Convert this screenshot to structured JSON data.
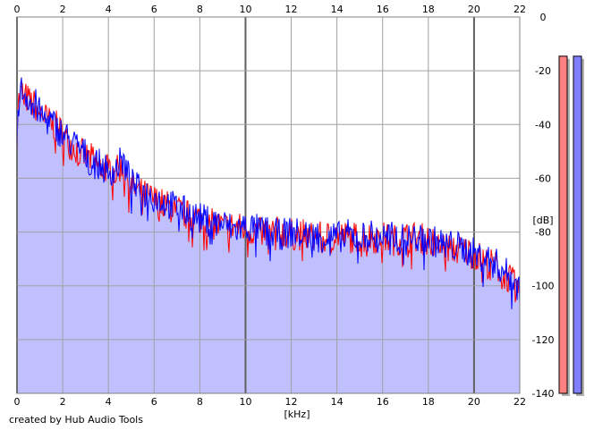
{
  "footer_text": "created by Hub Audio Tools",
  "chart_data": {
    "type": "area",
    "xlabel": "[kHz]",
    "ylabel": "[dB]",
    "xlim": [
      0,
      22
    ],
    "ylim": [
      -140,
      0
    ],
    "x_ticks": [
      "0",
      "2",
      "4",
      "6",
      "8",
      "10",
      "12",
      "14",
      "16",
      "18",
      "20",
      "22"
    ],
    "y_ticks": [
      "0",
      "-20",
      "-40",
      "-60",
      "-80",
      "-100",
      "-120",
      "-140"
    ],
    "grid": true,
    "fill_color": "#c0c0ff",
    "series": [
      {
        "color": "#ff0000",
        "x": [
          0,
          0.2,
          0.4,
          0.6,
          0.8,
          1.0,
          1.2,
          1.5,
          1.8,
          2.0,
          2.3,
          2.6,
          3.0,
          3.3,
          3.6,
          4.0,
          4.3,
          4.6,
          5.0,
          5.5,
          6.0,
          6.5,
          7.0,
          7.5,
          8.0,
          8.5,
          9.0,
          9.5,
          10.0,
          10.5,
          11.0,
          11.5,
          12.0,
          12.5,
          13.0,
          13.5,
          14.0,
          14.5,
          15.0,
          15.5,
          16.0,
          16.5,
          17.0,
          17.5,
          18.0,
          18.5,
          19.0,
          19.5,
          20.0,
          20.5,
          21.0,
          21.5,
          22.0
        ],
        "y": [
          -33,
          -28,
          -30,
          -32,
          -33,
          -35,
          -37,
          -40,
          -41,
          -44,
          -47,
          -49,
          -52,
          -53,
          -56,
          -56,
          -58,
          -55,
          -63,
          -66,
          -68,
          -70,
          -72,
          -74,
          -75,
          -77,
          -78,
          -78,
          -79,
          -80,
          -80,
          -80,
          -81,
          -81,
          -82,
          -82,
          -81,
          -82,
          -82,
          -82,
          -82,
          -83,
          -82,
          -82,
          -83,
          -85,
          -86,
          -87,
          -88,
          -91,
          -93,
          -97,
          -102
        ]
      },
      {
        "color": "#0000ff",
        "x": [
          0,
          0.2,
          0.4,
          0.6,
          0.8,
          1.0,
          1.2,
          1.5,
          1.8,
          2.0,
          2.3,
          2.6,
          3.0,
          3.3,
          3.6,
          4.0,
          4.3,
          4.6,
          5.0,
          5.5,
          6.0,
          6.5,
          7.0,
          7.5,
          8.0,
          8.5,
          9.0,
          9.5,
          10.0,
          10.5,
          11.0,
          11.5,
          12.0,
          12.5,
          13.0,
          13.5,
          14.0,
          14.5,
          15.0,
          15.5,
          16.0,
          16.5,
          17.0,
          17.5,
          18.0,
          18.5,
          19.0,
          19.5,
          20.0,
          20.5,
          21.0,
          21.5,
          22.0
        ],
        "y": [
          -34,
          -27,
          -29,
          -31,
          -32,
          -36,
          -38,
          -39,
          -42,
          -43,
          -46,
          -48,
          -51,
          -54,
          -55,
          -57,
          -57,
          -53,
          -62,
          -65,
          -67,
          -69,
          -71,
          -73,
          -75,
          -76,
          -77,
          -79,
          -78,
          -79,
          -80,
          -81,
          -80,
          -81,
          -81,
          -82,
          -82,
          -81,
          -82,
          -81,
          -82,
          -82,
          -83,
          -82,
          -83,
          -84,
          -85,
          -86,
          -88,
          -90,
          -92,
          -96,
          -101
        ]
      }
    ]
  },
  "level_meters": [
    {
      "color": "#ff8080",
      "level": 0.95
    },
    {
      "color": "#8080ff",
      "level": 0.95
    }
  ]
}
